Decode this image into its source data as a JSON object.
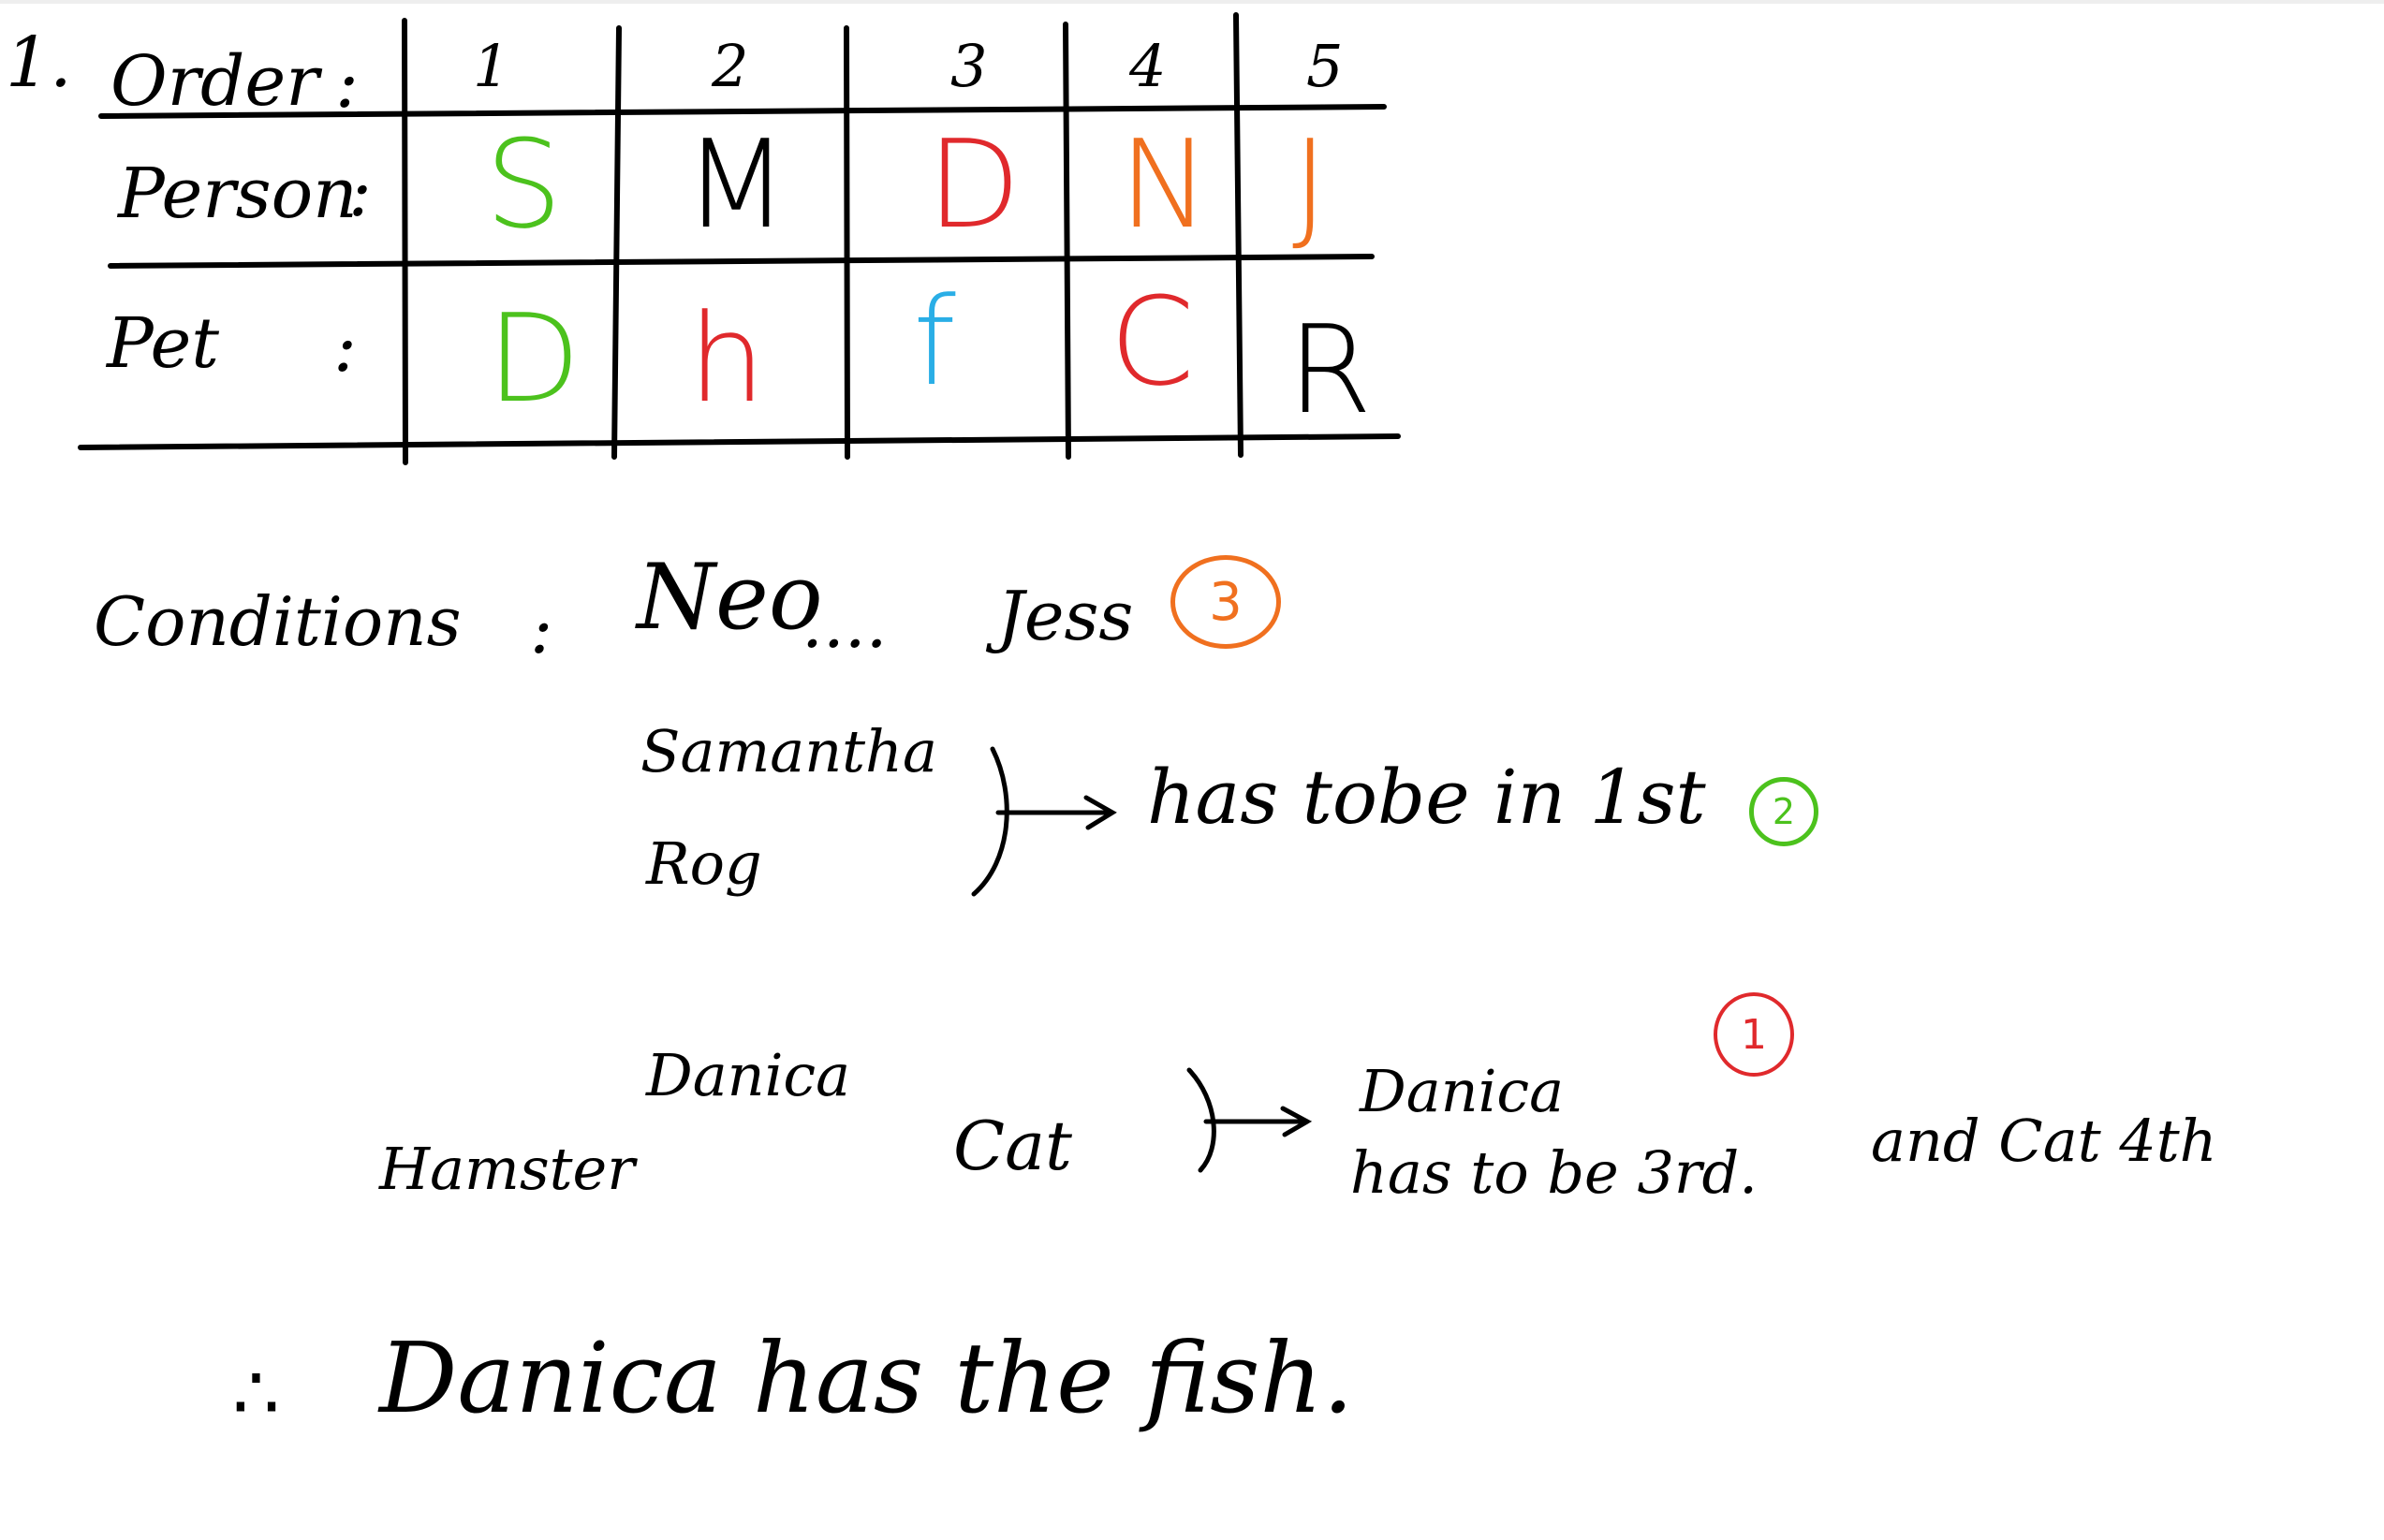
{
  "colors": {
    "green": "#4cc21d",
    "red": "#e0292c",
    "orange": "#f0701f",
    "blue": "#2aaee6",
    "ink": "#000000"
  },
  "table": {
    "problem_number": "1.",
    "row_labels": {
      "order": "Order",
      "person": "Person",
      "pet": "Pet"
    },
    "colon": ":",
    "order": [
      "1",
      "2",
      "3",
      "4",
      "5"
    ],
    "person": [
      {
        "text": "S",
        "color": "green"
      },
      {
        "text": "M",
        "color": "ink"
      },
      {
        "text": "D",
        "color": "red"
      },
      {
        "text": "N",
        "color": "orange"
      },
      {
        "text": "J",
        "color": "orange"
      }
    ],
    "pet": [
      {
        "text": "D",
        "color": "green"
      },
      {
        "text": "h",
        "color": "red"
      },
      {
        "text": "f",
        "color": "blue"
      },
      {
        "text": "C",
        "color": "red"
      },
      {
        "text": "R",
        "color": "ink"
      }
    ]
  },
  "conditions": {
    "label": "Conditions",
    "colon": ":",
    "c3": {
      "name_a": "Neo",
      "dots": "....",
      "name_b": "Jess",
      "marker": "3",
      "marker_color": "orange"
    },
    "c2": {
      "name_a": "Samantha",
      "name_b": "Rog",
      "result": "has tobe in 1st",
      "marker": "2",
      "marker_color": "green"
    },
    "c1": {
      "name": "Danica",
      "hamster": "Hamster",
      "cat": "Cat",
      "result_line1": "Danica",
      "result_line2": "has to be 3rd.",
      "extra": "and Cat 4th",
      "marker": "1",
      "marker_color": "red"
    }
  },
  "conclusion": {
    "therefore": "∴",
    "text": "Danica has the fish."
  }
}
